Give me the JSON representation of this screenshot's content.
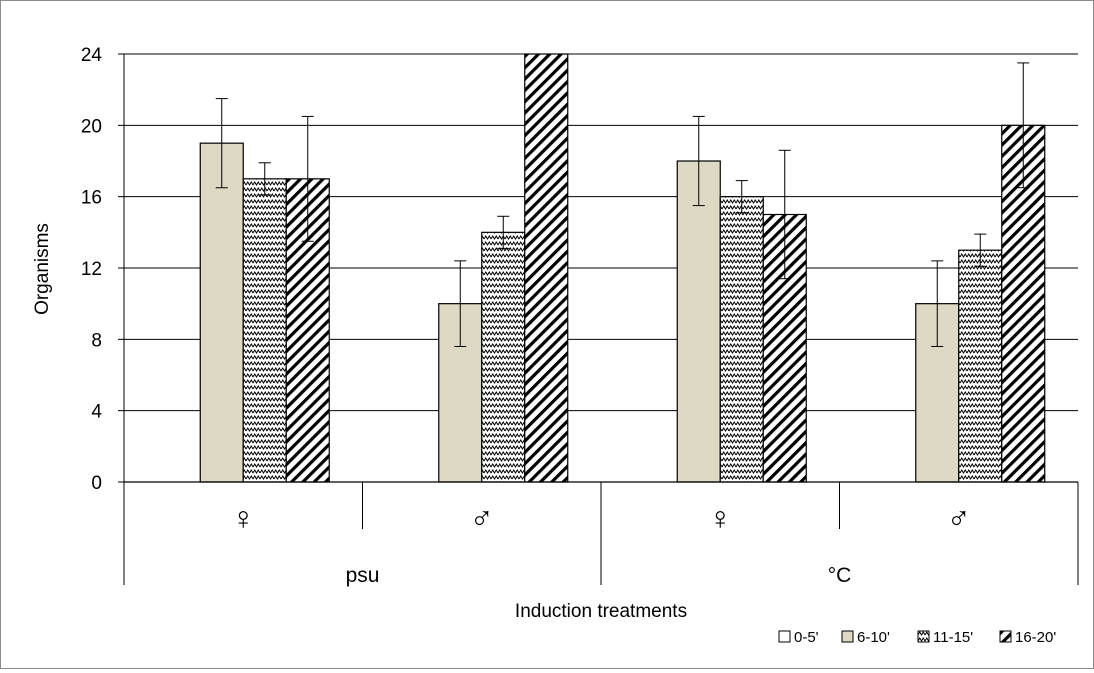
{
  "chart_data": {
    "type": "bar",
    "title": "",
    "xlabel": "Induction treatments",
    "ylabel": "Organisms",
    "ylim": [
      0,
      24
    ],
    "yticks": [
      0,
      4,
      8,
      12,
      16,
      20,
      24
    ],
    "grid": true,
    "legend_position": "bottom-right",
    "groups": [
      {
        "label": "psu",
        "categories": [
          "♀",
          "♂"
        ]
      },
      {
        "label": "°C",
        "categories": [
          "♀",
          "♂"
        ]
      }
    ],
    "categories": [
      "♀",
      "♂",
      "♀",
      "♂"
    ],
    "series": [
      {
        "name": "0-5'",
        "values": [
          0,
          0,
          0,
          0
        ],
        "errors": [
          0,
          0,
          0,
          0
        ],
        "fill": "#ffffff",
        "pattern": "none"
      },
      {
        "name": "6-10'",
        "values": [
          19,
          10,
          18,
          10
        ],
        "errors": [
          2.5,
          2.4,
          2.5,
          2.4
        ],
        "fill": "#ddd9c4",
        "pattern": "none"
      },
      {
        "name": "11-15'",
        "values": [
          17,
          14,
          16,
          13
        ],
        "errors": [
          0.9,
          0.9,
          0.9,
          0.9
        ],
        "fill": "#ffffff",
        "pattern": "zigzag"
      },
      {
        "name": "16-20'",
        "values": [
          17,
          24,
          15,
          20
        ],
        "errors": [
          3.5,
          0,
          3.6,
          3.5
        ],
        "fill": "#ffffff",
        "pattern": "diagonal"
      }
    ],
    "colors": {
      "axis": "#000000",
      "grid": "#000000",
      "frame": "#8c8c8c"
    }
  }
}
